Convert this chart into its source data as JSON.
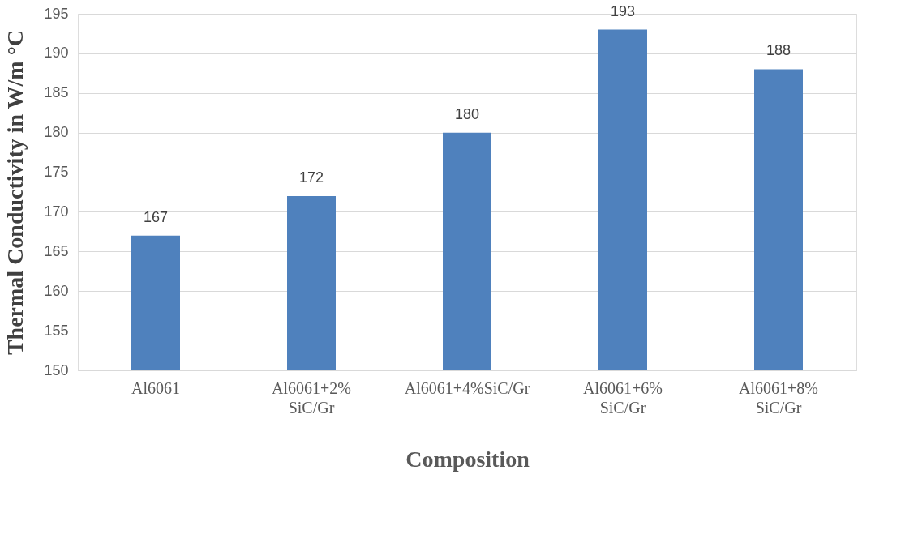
{
  "chart_data": {
    "type": "bar",
    "xlabel": "Composition",
    "ylabel": "Thermal Conductivity in W/m °C",
    "categories": [
      "Al6061",
      "Al6061+2% SiC/Gr",
      "Al6061+4%SiC/Gr",
      "Al6061+6% SiC/Gr",
      "Al6061+8% SiC/Gr"
    ],
    "values": [
      167,
      172,
      180,
      193,
      188
    ],
    "color": "#4f81bd",
    "ylim": [
      150,
      195
    ],
    "yticks": [
      150,
      155,
      160,
      165,
      170,
      175,
      180,
      185,
      190,
      195
    ],
    "grid": "y",
    "data_labels": true
  }
}
